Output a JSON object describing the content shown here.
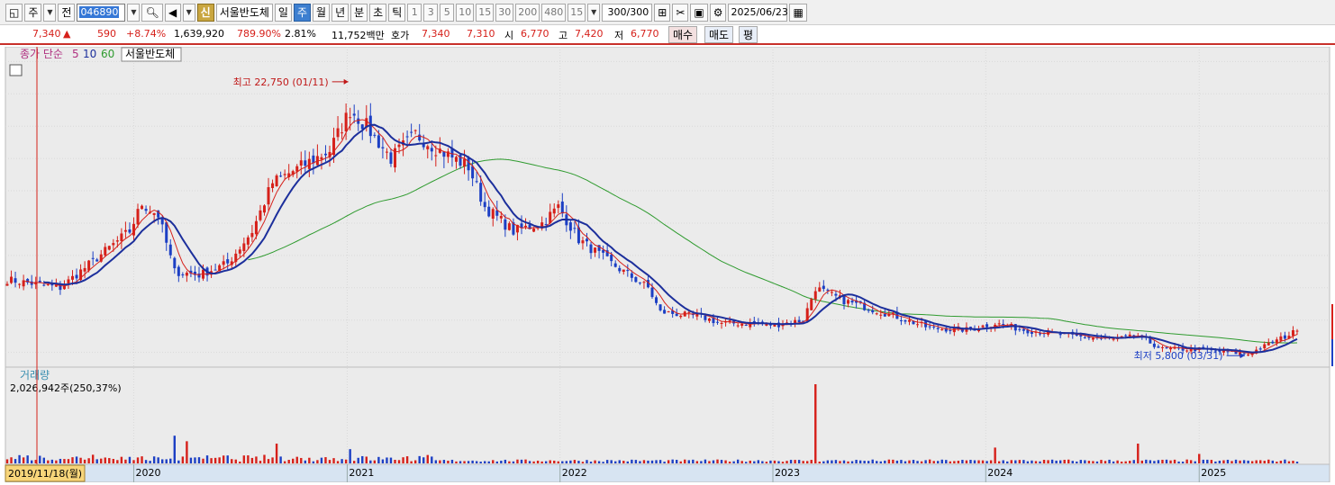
{
  "toolbar": {
    "market": "주",
    "scope": "전",
    "code": "046890",
    "new_label": "신",
    "name": "서울반도체",
    "periods": [
      "일",
      "주",
      "월",
      "년",
      "분",
      "초",
      "틱"
    ],
    "active_period": "주",
    "minutes": [
      "1",
      "3",
      "5",
      "10",
      "15",
      "30",
      "200",
      "480"
    ],
    "interval_value": "15",
    "count": "300/300",
    "date": "2025/06/23"
  },
  "quote": {
    "price": "7,340",
    "change_arrow": "▲",
    "change": "590",
    "change_pct": "+8.74%",
    "volume": "1,639,920",
    "volume_ratio": "789.90%",
    "turnover": "2.81%",
    "amount": "11,752백만",
    "hoga_label": "호가",
    "ask": "7,340",
    "bid": "7,310",
    "open_label": "시",
    "open": "6,770",
    "high_label": "고",
    "high": "7,420",
    "low_label": "저",
    "low": "6,770",
    "buy_button": "매수",
    "sell_button": "매도",
    "eval_button": "평"
  },
  "colors": {
    "up": "#d6201a",
    "down": "#1c3fc4",
    "ma5": "#d6201a",
    "ma10": "#1c2f9c",
    "ma60": "#2f9b2f",
    "grid": "#d9d9d9",
    "crosshair": "#d6201a"
  },
  "chart_data": {
    "type": "candlestick",
    "legend": {
      "label": "종가 단순",
      "ma": [
        "5",
        "10",
        "60"
      ],
      "series_name": "서울반도체"
    },
    "x_ticks": [
      "2020",
      "2021",
      "2022",
      "2023",
      "2024",
      "2025"
    ],
    "ylim": [
      5200,
      24800
    ],
    "annotations": {
      "high": {
        "text": "최고 22,750 (01/11)",
        "date": "2021-01-11",
        "value": 22750
      },
      "low": {
        "text": "최저 5,800 (03/31)",
        "date": "2025-03-31",
        "value": 5800
      }
    },
    "cursor_date": "2019/11/18(월)",
    "price_anchors": [
      [
        "2019-06-03",
        10500
      ],
      [
        "2019-09-02",
        10000
      ],
      [
        "2019-12-30",
        13500
      ],
      [
        "2020-01-20",
        15200
      ],
      [
        "2020-02-17",
        14500
      ],
      [
        "2020-03-16",
        11000
      ],
      [
        "2020-04-27",
        10800
      ],
      [
        "2020-06-15",
        11500
      ],
      [
        "2020-07-27",
        13500
      ],
      [
        "2020-08-31",
        16500
      ],
      [
        "2020-10-19",
        17500
      ],
      [
        "2020-12-07",
        18500
      ],
      [
        "2021-01-11",
        21000
      ],
      [
        "2021-02-08",
        20000
      ],
      [
        "2021-03-22",
        18000
      ],
      [
        "2021-05-03",
        19500
      ],
      [
        "2021-06-14",
        18500
      ],
      [
        "2021-08-02",
        17500
      ],
      [
        "2021-08-30",
        15000
      ],
      [
        "2021-10-18",
        13500
      ],
      [
        "2021-12-06",
        14000
      ],
      [
        "2022-01-03",
        15000
      ],
      [
        "2022-02-07",
        13000
      ],
      [
        "2022-04-04",
        11500
      ],
      [
        "2022-06-06",
        10000
      ],
      [
        "2022-06-27",
        8500
      ],
      [
        "2022-09-05",
        8200
      ],
      [
        "2022-10-10",
        7800
      ],
      [
        "2022-12-05",
        7800
      ],
      [
        "2023-01-09",
        7700
      ],
      [
        "2023-02-27",
        8000
      ],
      [
        "2023-03-20",
        10000
      ],
      [
        "2023-05-08",
        9200
      ],
      [
        "2023-08-07",
        8200
      ],
      [
        "2023-10-02",
        7500
      ],
      [
        "2023-12-04",
        7400
      ],
      [
        "2024-01-22",
        7800
      ],
      [
        "2024-03-11",
        7400
      ],
      [
        "2024-06-03",
        7000
      ],
      [
        "2024-08-12",
        6800
      ],
      [
        "2024-09-23",
        7000
      ],
      [
        "2024-11-04",
        6200
      ],
      [
        "2024-12-30",
        6200
      ],
      [
        "2025-03-31",
        5900
      ],
      [
        "2025-06-23",
        7340
      ]
    ],
    "volume": {
      "label": "거래량",
      "current": "2,026,942주(250,37%)",
      "spikes": [
        [
          "2020-03-16",
          0.35
        ],
        [
          "2020-04-06",
          0.28
        ],
        [
          "2020-09-07",
          0.25
        ],
        [
          "2021-01-11",
          0.18
        ],
        [
          "2023-03-20",
          1.0
        ],
        [
          "2024-01-22",
          0.2
        ],
        [
          "2024-09-23",
          0.25
        ],
        [
          "2025-01-06",
          0.12
        ]
      ]
    }
  }
}
